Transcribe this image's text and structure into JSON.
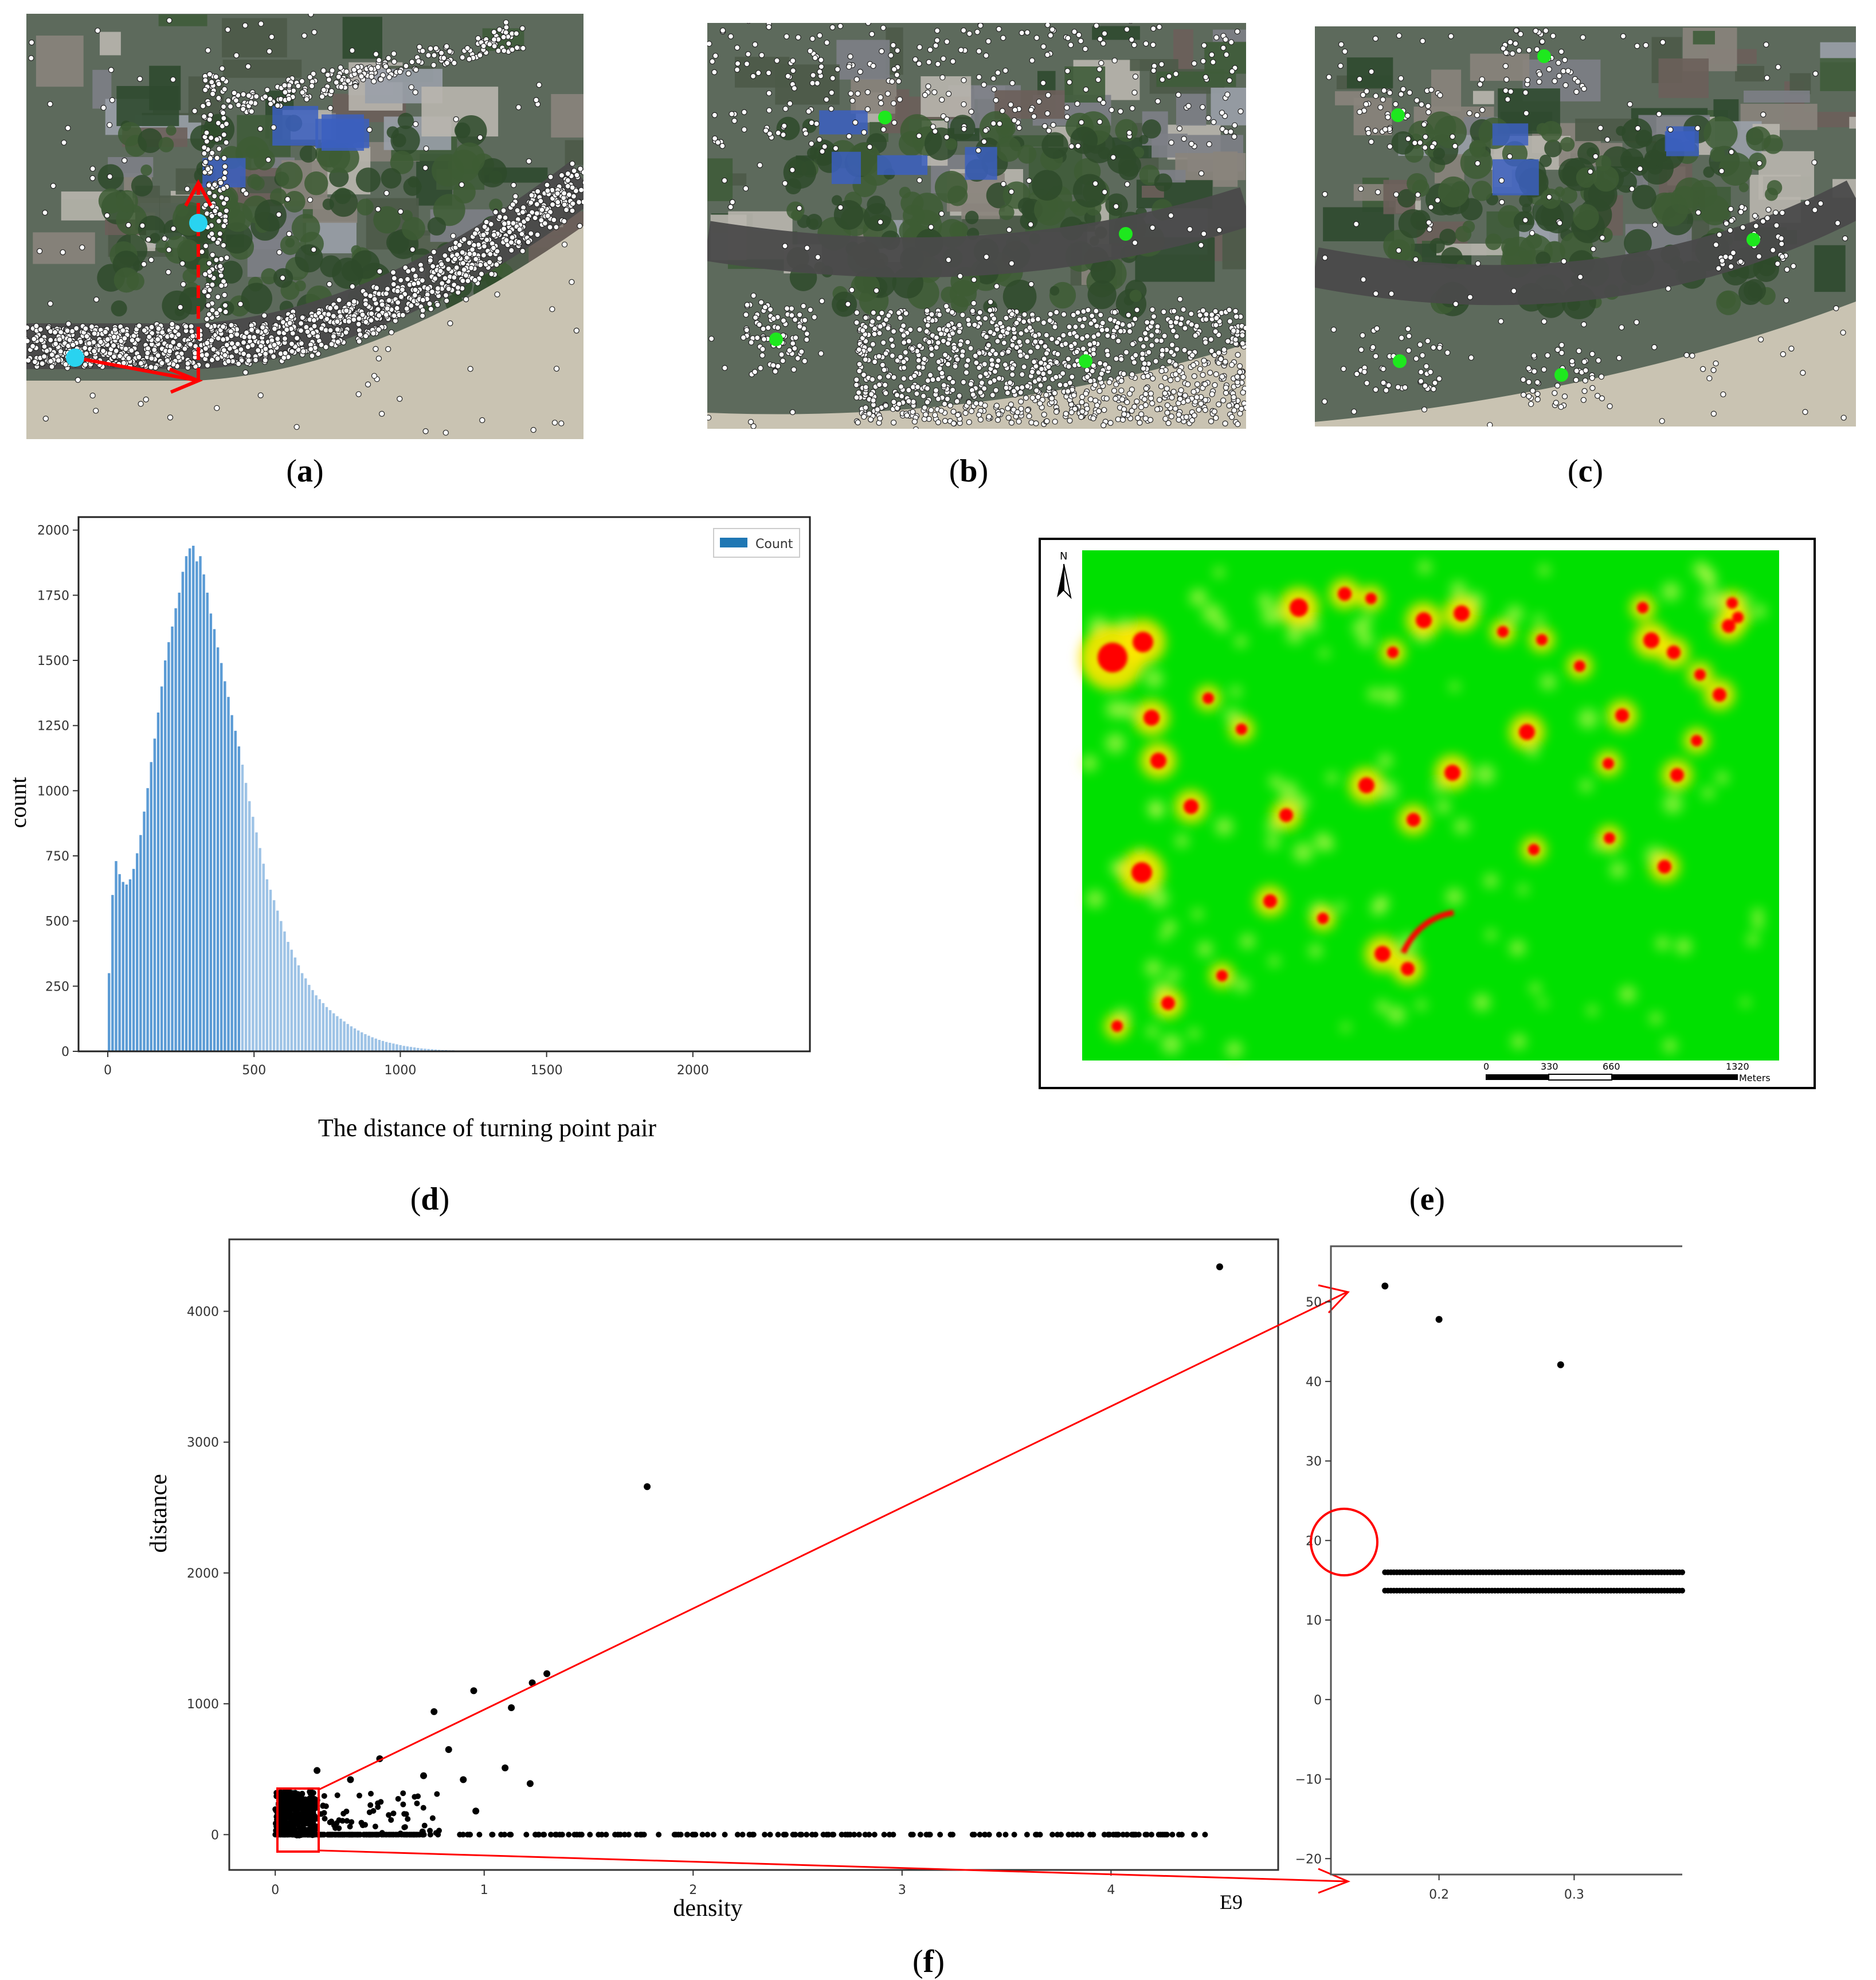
{
  "panels": {
    "a": {
      "label": "a"
    },
    "b": {
      "label": "b"
    },
    "c": {
      "label": "c"
    },
    "d": {
      "label": "d"
    },
    "e": {
      "label": "e"
    },
    "f": {
      "label": "f"
    }
  },
  "histogram": {
    "xlabel": "The distance of turning point pair",
    "ylabel": "count",
    "legend": "Count",
    "xticks": [
      "0",
      "500",
      "1000",
      "1500",
      "2000"
    ],
    "yticks": [
      "0",
      "250",
      "500",
      "750",
      "1000",
      "1250",
      "1500",
      "1750",
      "2000"
    ]
  },
  "heatmap": {
    "north": "N",
    "scale_ticks": [
      "0",
      "330",
      "660",
      "1320"
    ],
    "scale_unit": "Meters"
  },
  "scatter": {
    "xlabel": "density",
    "ylabel": "distance",
    "x_exponent": "E9",
    "xticks": [
      "0",
      "1",
      "2",
      "3",
      "4"
    ],
    "yticks": [
      "0",
      "1000",
      "2000",
      "3000",
      "4000"
    ],
    "inset_xticks": [
      "0.2",
      "0.3"
    ],
    "inset_yticks": [
      "50",
      "40",
      "30",
      "20",
      "10",
      "0",
      "−10",
      "−20"
    ]
  },
  "colors": {
    "hist_bar": "#5b9bd5",
    "hist_bar_light": "#9ec3e6",
    "legend_patch": "#1f77b4",
    "heat_bg": "#00e000",
    "heat_hot": "#ff0000",
    "arrow": "#ff0000",
    "green_marker": "#1ee81e",
    "cyan_marker": "#29d3f0"
  },
  "chart_data": [
    {
      "type": "bar",
      "title": "",
      "xlabel": "The distance of turning point pair",
      "ylabel": "count",
      "xlim": [
        -100,
        2400
      ],
      "ylim": [
        0,
        2050
      ],
      "legend": [
        "Count"
      ],
      "legend_position": "top-right",
      "bin_width": 12,
      "x_start": 0,
      "values": [
        300,
        600,
        730,
        680,
        650,
        640,
        660,
        700,
        760,
        830,
        920,
        1010,
        1110,
        1200,
        1300,
        1400,
        1500,
        1570,
        1630,
        1700,
        1760,
        1840,
        1900,
        1930,
        1940,
        1880,
        1900,
        1830,
        1760,
        1680,
        1620,
        1550,
        1490,
        1420,
        1360,
        1290,
        1230,
        1170,
        1100,
        1030,
        960,
        900,
        840,
        780,
        720,
        660,
        620,
        580,
        540,
        500,
        460,
        420,
        390,
        360,
        330,
        300,
        280,
        255,
        235,
        215,
        200,
        185,
        170,
        158,
        146,
        135,
        125,
        115,
        105,
        96,
        88,
        80,
        73,
        66,
        60,
        54,
        49,
        44,
        40,
        36,
        33,
        30,
        27,
        24,
        21,
        19,
        17,
        15,
        13,
        11,
        10,
        9,
        8,
        7,
        6,
        5,
        5,
        4,
        4,
        3,
        3,
        2,
        2,
        2,
        1,
        1,
        1,
        1,
        1,
        1,
        1,
        1,
        0,
        0,
        0
      ]
    },
    {
      "type": "heatmap",
      "title": "",
      "scale_bar": {
        "ticks": [
          0,
          330,
          660,
          1320
        ],
        "unit": "Meters"
      }
    },
    {
      "type": "scatter",
      "title": "",
      "xlabel": "density",
      "ylabel": "distance",
      "x_exponent": "E9",
      "xlim": [
        -0.22,
        4.8
      ],
      "ylim": [
        -270,
        4550
      ],
      "outliers": [
        [
          4.52,
          4340
        ],
        [
          1.78,
          2660
        ],
        [
          1.3,
          1230
        ],
        [
          1.23,
          1160
        ],
        [
          0.95,
          1100
        ],
        [
          0.76,
          940
        ],
        [
          1.13,
          970
        ],
        [
          0.83,
          650
        ],
        [
          0.5,
          580
        ],
        [
          0.71,
          450
        ],
        [
          0.9,
          420
        ],
        [
          1.1,
          510
        ],
        [
          1.22,
          390
        ],
        [
          0.2,
          490
        ],
        [
          0.96,
          180
        ],
        [
          0.36,
          420
        ]
      ],
      "baseline_points_y": 0,
      "inset": {
        "xlim": [
          0.12,
          0.38
        ],
        "ylim": [
          -22,
          57
        ],
        "points": [
          [
            0.16,
            52
          ],
          [
            0.2,
            47.8
          ],
          [
            0.29,
            42.1
          ]
        ],
        "bands_y": [
          16,
          13.7
        ]
      }
    }
  ]
}
